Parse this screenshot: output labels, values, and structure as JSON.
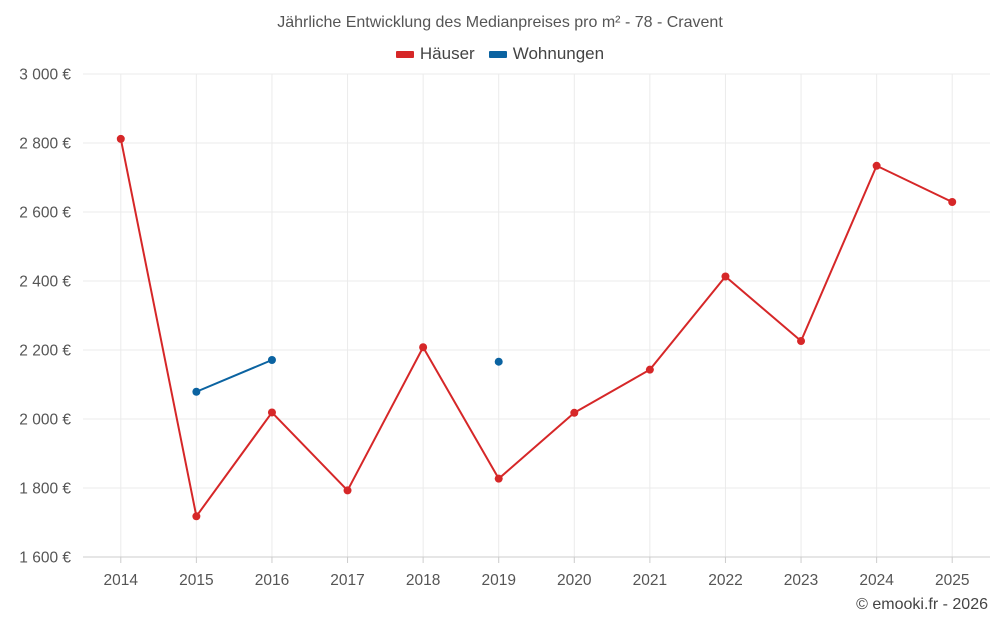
{
  "chart_data": {
    "type": "line",
    "title": "Jährliche Entwicklung des Medianpreises pro m² - 78 - Cravent",
    "categories": [
      "2014",
      "2015",
      "2016",
      "2017",
      "2018",
      "2019",
      "2020",
      "2021",
      "2022",
      "2023",
      "2024",
      "2025"
    ],
    "ylim": [
      1600,
      3000
    ],
    "yticks": [
      1600,
      1800,
      2000,
      2200,
      2400,
      2600,
      2800,
      3000
    ],
    "ytick_labels": [
      "1 600 €",
      "1 800 €",
      "2 000 €",
      "2 200 €",
      "2 400 €",
      "2 600 €",
      "2 800 €",
      "3 000 €"
    ],
    "grid": true,
    "legend_position": "top-center",
    "series": [
      {
        "name": "Häuser",
        "color": "#d62728",
        "values": [
          2812,
          1718,
          2019,
          1793,
          2208,
          1827,
          2018,
          2143,
          2413,
          2226,
          2734,
          2629
        ]
      },
      {
        "name": "Wohnungen",
        "color": "#0b63a1",
        "values": [
          null,
          2079,
          2171,
          null,
          null,
          2166,
          null,
          null,
          null,
          null,
          null,
          null
        ]
      }
    ]
  },
  "credit": "© emooki.fr - 2026"
}
